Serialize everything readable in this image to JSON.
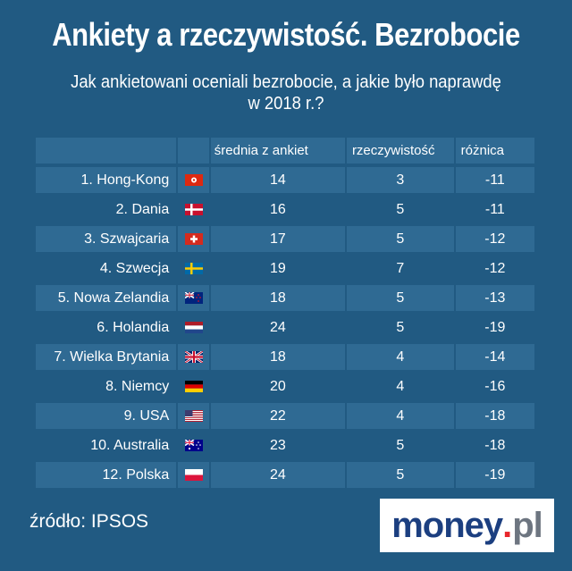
{
  "chart_data": {
    "type": "table",
    "title": "Ankiety a rzeczywistość. Bezrobocie",
    "subtitle_line1": "Jak ankietowani oceniali bezrobocie, a jakie było naprawdę",
    "subtitle_line2": "w 2018 r.?",
    "columns": [
      "",
      "",
      "średnia z ankiet",
      "rzeczywistość",
      "różnica"
    ],
    "rows": [
      {
        "name": "1. Hong-Kong",
        "flag": "hong-kong",
        "avg": "14",
        "real": "3",
        "diff": "-11"
      },
      {
        "name": "2. Dania",
        "flag": "denmark",
        "avg": "16",
        "real": "5",
        "diff": "-11"
      },
      {
        "name": "3. Szwajcaria",
        "flag": "switzerland",
        "avg": "17",
        "real": "5",
        "diff": "-12"
      },
      {
        "name": "4. Szwecja",
        "flag": "sweden",
        "avg": "19",
        "real": "7",
        "diff": "-12"
      },
      {
        "name": "5. Nowa Zelandia",
        "flag": "new-zealand",
        "avg": "18",
        "real": "5",
        "diff": "-13"
      },
      {
        "name": "6. Holandia",
        "flag": "netherlands",
        "avg": "24",
        "real": "5",
        "diff": "-19"
      },
      {
        "name": "7. Wielka Brytania",
        "flag": "united-kingdom",
        "avg": "18",
        "real": "4",
        "diff": "-14"
      },
      {
        "name": "8. Niemcy",
        "flag": "germany",
        "avg": "20",
        "real": "4",
        "diff": "-16"
      },
      {
        "name": "9. USA",
        "flag": "usa",
        "avg": "22",
        "real": "4",
        "diff": "-18"
      },
      {
        "name": "10. Australia",
        "flag": "australia",
        "avg": "23",
        "real": "5",
        "diff": "-18"
      },
      {
        "name": "12. Polska",
        "flag": "poland",
        "avg": "24",
        "real": "5",
        "diff": "-19"
      }
    ]
  },
  "footer": {
    "source": "źródło: IPSOS",
    "logo_main": "money",
    "logo_dot": ".",
    "logo_tld": "pl"
  },
  "colors": {
    "background": "#215a82",
    "row_band": "#2f6a93"
  }
}
